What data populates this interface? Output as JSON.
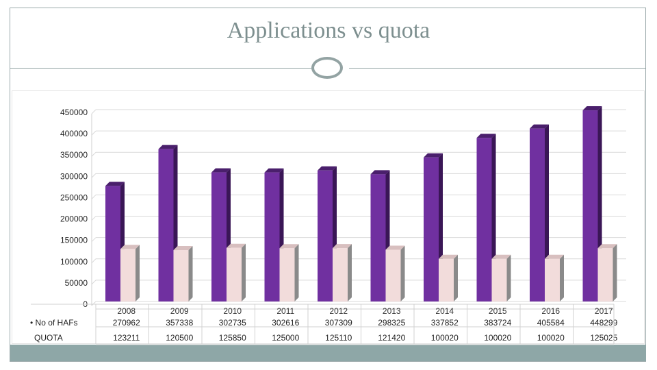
{
  "slide": {
    "title": "Applications vs quota"
  },
  "colors": {
    "series_applications": "#7030a0",
    "series_quota": "#f2dcdb",
    "accent": "#8ea7a7"
  },
  "chart_data": {
    "type": "bar",
    "title": "",
    "xlabel": "",
    "ylabel": "",
    "ylim": [
      0,
      450000
    ],
    "yticks": [
      "450000",
      "400000",
      "350000",
      "300000",
      "250000",
      "200000",
      "150000",
      "100000",
      "50000",
      "0"
    ],
    "categories": [
      "2008",
      "2009",
      "2010",
      "2011",
      "2012",
      "2013",
      "2014",
      "2015",
      "2016",
      "2017"
    ],
    "series": [
      {
        "name": "No of HAFs",
        "values": [
          270962,
          357338,
          302735,
          302616,
          307309,
          298325,
          337852,
          383724,
          405584,
          448299
        ]
      },
      {
        "name": "QUOTA",
        "values": [
          123211,
          120500,
          125850,
          125000,
          125110,
          121420,
          100020,
          100020,
          100020,
          125025
        ]
      }
    ],
    "grid": true,
    "legend": "data-table"
  }
}
